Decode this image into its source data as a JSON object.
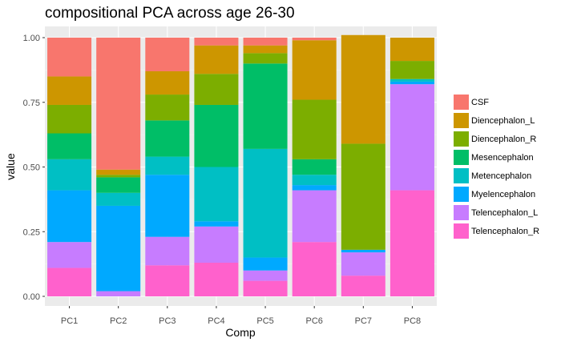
{
  "chart_data": {
    "type": "bar",
    "stacked": true,
    "title": "compositional PCA across age 26-30",
    "xlabel": "Comp",
    "ylabel": "value",
    "ylim": [
      0,
      1
    ],
    "yticks": [
      "0.00",
      "0.25",
      "0.50",
      "0.75",
      "1.00"
    ],
    "categories": [
      "PC1",
      "PC2",
      "PC3",
      "PC4",
      "PC5",
      "PC6",
      "PC7",
      "PC8"
    ],
    "series": [
      {
        "name": "CSF",
        "color": "#F8766D",
        "values": [
          0.15,
          0.51,
          0.13,
          0.03,
          0.03,
          0.01,
          0.0,
          0.0
        ]
      },
      {
        "name": "Diencephalon_L",
        "color": "#CD9600",
        "values": [
          0.11,
          0.02,
          0.09,
          0.11,
          0.03,
          0.23,
          0.42,
          0.09
        ]
      },
      {
        "name": "Diencephalon_R",
        "color": "#7CAE00",
        "values": [
          0.11,
          0.01,
          0.1,
          0.12,
          0.04,
          0.23,
          0.41,
          0.07
        ]
      },
      {
        "name": "Mesencephalon",
        "color": "#00BE67",
        "values": [
          0.1,
          0.06,
          0.14,
          0.24,
          0.33,
          0.06,
          0.0,
          0.0
        ]
      },
      {
        "name": "Metencephalon",
        "color": "#00BFC4",
        "values": [
          0.12,
          0.05,
          0.07,
          0.21,
          0.42,
          0.04,
          0.0,
          0.01
        ]
      },
      {
        "name": "Myelencephalon",
        "color": "#00A9FF",
        "values": [
          0.2,
          0.33,
          0.24,
          0.02,
          0.05,
          0.02,
          0.01,
          0.01
        ]
      },
      {
        "name": "Telencephalon_L",
        "color": "#C77CFF",
        "values": [
          0.1,
          0.02,
          0.11,
          0.14,
          0.04,
          0.2,
          0.09,
          0.41
        ]
      },
      {
        "name": "Telencephalon_R",
        "color": "#FF61CC",
        "values": [
          0.11,
          0.0,
          0.12,
          0.13,
          0.06,
          0.21,
          0.08,
          0.41
        ]
      }
    ],
    "legend_position": "right",
    "grid": true
  }
}
